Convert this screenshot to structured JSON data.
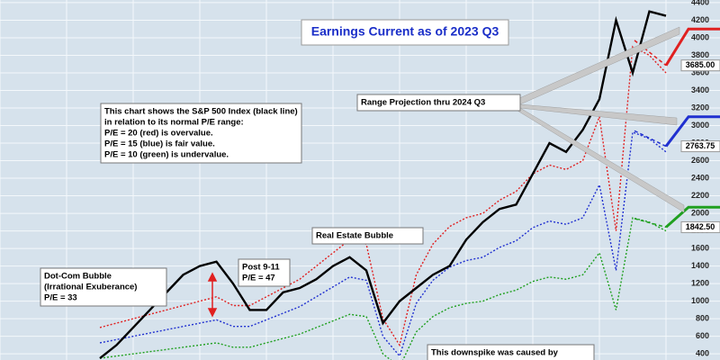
{
  "chart_data": {
    "type": "line",
    "title": "Earnings Current as of 2023 Q3",
    "categories": [
      null,
      null,
      null,
      null,
      null,
      null,
      null,
      null,
      null,
      null,
      null,
      null,
      null,
      null,
      null,
      null,
      null,
      null,
      null,
      null,
      null,
      null,
      null,
      null,
      null,
      null,
      null,
      null,
      null,
      null,
      null,
      null,
      null,
      null,
      null,
      null,
      null,
      null,
      null,
      null,
      null
    ],
    "series": [
      {
        "color": "#e02020",
        "dashed": true,
        "values": [
          null,
          null,
          null,
          null,
          null,
          null,
          700,
          750,
          800,
          850,
          900,
          950,
          1000,
          1050,
          950,
          950,
          1050,
          1150,
          1250,
          1400,
          1550,
          1700,
          1650,
          800,
          500,
          1300,
          1650,
          1850,
          1950,
          2000,
          2150,
          2250,
          2450,
          2550,
          2500,
          2600,
          3100,
          1800,
          3900,
          3800,
          3600
        ]
      },
      {
        "color": "#2030d0",
        "dashed": true,
        "values": [
          null,
          null,
          null,
          null,
          null,
          null,
          525,
          562.5,
          600,
          637.5,
          675,
          712.5,
          750,
          787.5,
          712.5,
          712.5,
          787.5,
          862.5,
          937.5,
          1050,
          1162.5,
          1275,
          1237.5,
          600,
          375,
          975,
          1237.5,
          1387.5,
          1462.5,
          1500,
          1612.5,
          1687.5,
          1837.5,
          1912.5,
          1875,
          1950,
          2325,
          1350,
          2925,
          2850,
          2700
        ]
      },
      {
        "color": "#20a020",
        "dashed": true,
        "values": [
          null,
          null,
          null,
          null,
          null,
          null,
          350,
          375,
          400,
          425,
          450,
          475,
          500,
          525,
          475,
          475,
          525,
          575,
          625,
          700,
          775,
          850,
          825,
          400,
          250,
          650,
          825,
          925,
          975,
          1000,
          1075,
          1125,
          1225,
          1275,
          1250,
          1300,
          1550,
          900,
          1950,
          1900,
          1800
        ]
      },
      {
        "color": "#000000",
        "dashed": false,
        "values": [
          null,
          null,
          null,
          null,
          null,
          null,
          350,
          500,
          700,
          900,
          1100,
          1300,
          1400,
          1450,
          1200,
          900,
          900,
          1100,
          1150,
          1250,
          1400,
          1500,
          1350,
          750,
          1000,
          1150,
          1300,
          1400,
          1700,
          1900,
          2050,
          2100,
          2450,
          2800,
          2700,
          2950,
          3300,
          4200,
          3600,
          4300,
          4250
        ]
      }
    ],
    "projections": [
      {
        "color": "#e02020",
        "dashed_from": 3970,
        "start": 3685,
        "start_label": "3685.00",
        "end": 4100
      },
      {
        "color": "#2030d0",
        "dashed_from": 2940,
        "start": 2763.75,
        "start_label": "2763.75",
        "end": 3100
      },
      {
        "color": "#20a020",
        "dashed_from": 1940,
        "start": 1842.5,
        "start_label": "1842.50",
        "end": 2070
      }
    ],
    "ylim": [
      330,
      4430
    ],
    "yticks": [
      400,
      600,
      800,
      1000,
      1200,
      1400,
      1600,
      1800,
      2000,
      2200,
      2400,
      2600,
      2800,
      3000,
      3200,
      3400,
      3600,
      3800,
      4000,
      4200,
      4400
    ],
    "grid": true,
    "annotations": [
      {
        "lines": [
          "This chart shows the S&P 500 Index (black line)",
          "in relation to its normal P/E range:",
          "P/E = 20 (red) is overvalue.",
          "P/E = 15 (blue) is fair value.",
          "P/E = 10 (green) is undervalue."
        ]
      },
      {
        "lines": [
          "Range Projection thru 2024 Q3"
        ]
      },
      {
        "lines": [
          "Real Estate Bubble"
        ]
      },
      {
        "lines": [
          "Dot-Com Bubble",
          "(Irrational Exuberance)",
          "P/E = 33"
        ]
      },
      {
        "lines": [
          "Post 9-11",
          "P/E = 47"
        ]
      },
      {
        "lines": [
          "This downspike was caused by"
        ]
      }
    ]
  }
}
